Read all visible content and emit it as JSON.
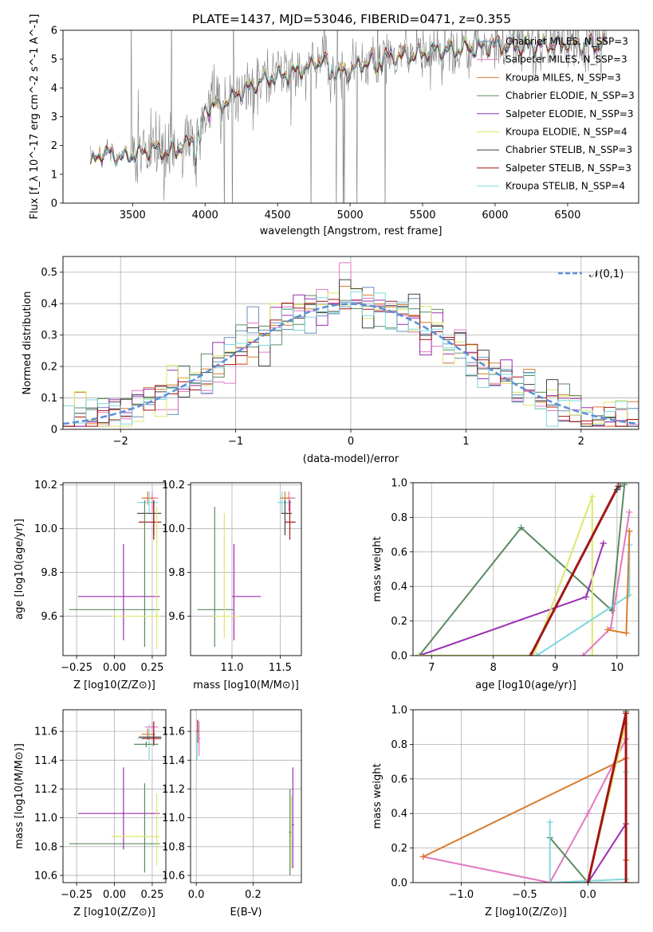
{
  "figure": {
    "title": "PLATE=1437, MJD=53046, FIBERID=0471, z=0.355"
  },
  "chart_data": [
    {
      "id": "spectrum",
      "type": "line",
      "xlabel": "wavelength [Angstrom, rest frame]",
      "ylabel": "Flux [f_λ 10^-17 erg cm^-2 s^-1 A^-1]",
      "xlim": [
        3020,
        6990
      ],
      "ylim": [
        0,
        6
      ],
      "xticks": [
        3500,
        4000,
        4500,
        5000,
        5500,
        6000,
        6500
      ],
      "yticks": [
        0,
        1,
        2,
        3,
        4,
        5,
        6
      ],
      "grid": false,
      "legend_position": "top-right",
      "data_anchor_x": [
        3210,
        3300,
        3350,
        3450,
        3550,
        3650,
        3750,
        3850,
        3950,
        4000,
        4050,
        4100,
        4150,
        4200,
        4300,
        4400,
        4500,
        4600,
        4700,
        4800,
        4860,
        4900,
        5000,
        5100,
        5200,
        5300,
        5400,
        5500,
        5600,
        5700,
        5800,
        5900,
        6000,
        6100,
        6200,
        6300,
        6400,
        6500,
        6600,
        6700,
        6770
      ],
      "model_anchor_y": [
        1.35,
        1.8,
        1.7,
        1.6,
        1.75,
        1.9,
        1.75,
        2.0,
        2.4,
        3.2,
        3.5,
        3.3,
        3.6,
        3.75,
        4.0,
        4.3,
        4.4,
        4.55,
        4.7,
        5.0,
        4.8,
        4.5,
        4.6,
        4.9,
        5.0,
        5.1,
        5.1,
        5.2,
        5.35,
        5.3,
        5.4,
        5.4,
        5.5,
        5.45,
        5.45,
        5.5,
        5.5,
        5.55,
        5.5,
        5.55,
        5.5
      ],
      "series": [
        {
          "name": "Chabrier MILES, N_SSP=3",
          "color": "#6a8fbf"
        },
        {
          "name": "Salpeter MILES, N_SSP=3",
          "color": "#e377c2"
        },
        {
          "name": "Kroupa MILES, N_SSP=3",
          "color": "#d97b2e"
        },
        {
          "name": "Chabrier ELODIE, N_SSP=3",
          "color": "#5b8a62"
        },
        {
          "name": "Salpeter ELODIE, N_SSP=3",
          "color": "#9a2fb3"
        },
        {
          "name": "Kroupa ELODIE, N_SSP=4",
          "color": "#dbe86a"
        },
        {
          "name": "Chabrier STELIB, N_SSP=3",
          "color": "#444444"
        },
        {
          "name": "Salpeter STELIB, N_SSP=3",
          "color": "#a31515"
        },
        {
          "name": "Kroupa STELIB, N_SSP=4",
          "color": "#7fd8de"
        }
      ],
      "data_color": "#7f7f7f"
    },
    {
      "id": "residuals",
      "type": "line",
      "xlabel": "(data-model)/error",
      "ylabel": "Normed distribution",
      "xlim": [
        -2.5,
        2.5
      ],
      "ylim": [
        0,
        0.55
      ],
      "xticks": [
        -2,
        -1,
        0,
        1,
        2
      ],
      "yticks": [
        0.0,
        0.1,
        0.2,
        0.3,
        0.4,
        0.5
      ],
      "grid": true,
      "legend_position": "top-right",
      "bin_width": 0.1,
      "series": [
        {
          "name": "𝒩(0,1)",
          "color": "#5b8fd9",
          "style": "dashed",
          "mu": 0,
          "sigma": 1
        }
      ],
      "histograms": [
        {
          "color": "#6a8fbf"
        },
        {
          "color": "#e377c2"
        },
        {
          "color": "#d97b2e"
        },
        {
          "color": "#5b8a62"
        },
        {
          "color": "#9a2fb3"
        },
        {
          "color": "#dbe86a"
        },
        {
          "color": "#444444"
        },
        {
          "color": "#a31515"
        },
        {
          "color": "#7fd8de"
        }
      ],
      "peaks": [
        {
          "x": -0.05,
          "y": 0.53
        },
        {
          "x": -0.85,
          "y": 0.39
        },
        {
          "x": 0.55,
          "y": 0.43
        }
      ]
    },
    {
      "id": "age_vs_Z",
      "type": "scatter",
      "xlabel": "Z [log10(Z/Z⊙)]",
      "ylabel": "age [log10(age/yr)]",
      "xlim": [
        -0.34,
        0.34
      ],
      "ylim": [
        9.42,
        10.21
      ],
      "xticks": [
        -0.25,
        0.0,
        0.25
      ],
      "xtick_labels": [
        "−0.25",
        "0.00",
        "0.25"
      ],
      "yticks": [
        9.6,
        9.8,
        10.0,
        10.2
      ],
      "yticks_labels": [
        "9.6",
        "9.8",
        "10.0",
        "10.2"
      ],
      "grid": true,
      "points": [
        {
          "x": 0.25,
          "y": 10.14,
          "xerr": [
            0.05,
            0.04
          ],
          "yerr": [
            0.06,
            0.03
          ],
          "color": "#e377c2"
        },
        {
          "x": 0.22,
          "y": 10.14,
          "xerr": [
            0.04,
            0.05
          ],
          "yerr": [
            0.03,
            0.03
          ],
          "color": "#d97b2e"
        },
        {
          "x": 0.23,
          "y": 10.12,
          "xerr": [
            0.08,
            0.06
          ],
          "yerr": [
            0.05,
            0.05
          ],
          "color": "#7fd8de"
        },
        {
          "x": 0.26,
          "y": 10.07,
          "xerr": [
            0.11,
            0.05
          ],
          "yerr": [
            0.1,
            0.06
          ],
          "color": "#444444"
        },
        {
          "x": 0.26,
          "y": 10.03,
          "xerr": [
            0.1,
            0.05
          ],
          "yerr": [
            0.08,
            0.1
          ],
          "color": "#a31515"
        },
        {
          "x": 0.06,
          "y": 9.69,
          "xerr": [
            0.3,
            0.24
          ],
          "yerr": [
            0.2,
            0.24
          ],
          "color": "#9a2fb3"
        },
        {
          "x": 0.2,
          "y": 9.63,
          "xerr": [
            0.5,
            0.1
          ],
          "yerr": [
            0.17,
            0.5
          ],
          "color": "#5b8a62"
        },
        {
          "x": 0.28,
          "y": 9.6,
          "xerr": [
            0.3,
            0.02
          ],
          "yerr": [
            0.15,
            0.5
          ],
          "color": "#dbe86a"
        }
      ]
    },
    {
      "id": "age_vs_mass",
      "type": "scatter",
      "xlabel": "mass [log10(M/M⊙)]",
      "xlim": [
        10.57,
        11.72
      ],
      "ylim": [
        9.42,
        10.21
      ],
      "xticks": [
        11.0,
        11.5
      ],
      "xtick_labels": [
        "11.0",
        "11.5"
      ],
      "yticks": [
        9.6,
        9.8,
        10.0,
        10.2
      ],
      "yticks_labels": [
        "9.6",
        "9.8",
        "10.0",
        "10.2"
      ],
      "grid": true,
      "points": [
        {
          "x": 11.59,
          "y": 10.14,
          "xerr": [
            0.07,
            0.07
          ],
          "yerr": [
            0.06,
            0.03
          ],
          "color": "#e377c2"
        },
        {
          "x": 11.55,
          "y": 10.14,
          "xerr": [
            0.05,
            0.07
          ],
          "yerr": [
            0.03,
            0.03
          ],
          "color": "#d97b2e"
        },
        {
          "x": 11.52,
          "y": 10.12,
          "xerr": [
            0.05,
            0.1
          ],
          "yerr": [
            0.05,
            0.05
          ],
          "color": "#7fd8de"
        },
        {
          "x": 11.55,
          "y": 10.07,
          "xerr": [
            0.04,
            0.07
          ],
          "yerr": [
            0.1,
            0.06
          ],
          "color": "#444444"
        },
        {
          "x": 11.6,
          "y": 10.03,
          "xerr": [
            0.05,
            0.06
          ],
          "yerr": [
            0.08,
            0.1
          ],
          "color": "#a31515"
        },
        {
          "x": 11.02,
          "y": 9.69,
          "xerr": [
            0.02,
            0.28
          ],
          "yerr": [
            0.2,
            0.24
          ],
          "color": "#9a2fb3"
        },
        {
          "x": 10.82,
          "y": 9.63,
          "xerr": [
            0.18,
            0.2
          ],
          "yerr": [
            0.17,
            0.47
          ],
          "color": "#5b8a62"
        },
        {
          "x": 10.92,
          "y": 9.6,
          "xerr": [
            0.12,
            0.16
          ],
          "yerr": [
            0.1,
            0.47
          ],
          "color": "#dbe86a"
        }
      ]
    },
    {
      "id": "weight_vs_age",
      "type": "line",
      "xlabel": "age [log10(age/yr)]",
      "ylabel": "mass weight",
      "xlim": [
        6.7,
        10.35
      ],
      "ylim": [
        0,
        1
      ],
      "xticks": [
        7,
        8,
        9,
        10
      ],
      "yticks": [
        0.0,
        0.2,
        0.4,
        0.6,
        0.8,
        1.0
      ],
      "yticks_labels": [
        "0.0",
        "0.2",
        "0.4",
        "0.6",
        "0.8",
        "1.0"
      ],
      "grid": true,
      "series": [
        {
          "color": "#5b8a62",
          "x": [
            6.8,
            8.45,
            9.92,
            10.12
          ],
          "y": [
            0.0,
            0.74,
            0.26,
            0.99
          ],
          "width": 2
        },
        {
          "color": "#9a2fb3",
          "x": [
            6.8,
            9.5,
            9.78
          ],
          "y": [
            0.0,
            0.34,
            0.65
          ],
          "width": 2
        },
        {
          "color": "#dbe86a",
          "x": [
            6.8,
            8.65,
            9.6,
            9.6
          ],
          "y": [
            0.0,
            0.0,
            0.92,
            0.0
          ],
          "width": 2
        },
        {
          "color": "#7fd8de",
          "x": [
            8.7,
            10.2,
            10.2
          ],
          "y": [
            0.0,
            0.35,
            0.64
          ],
          "width": 2
        },
        {
          "color": "#e377c2",
          "x": [
            9.45,
            9.9,
            10.2
          ],
          "y": [
            0.0,
            0.16,
            0.83
          ],
          "width": 2
        },
        {
          "color": "#d97b2e",
          "x": [
            9.85,
            10.15,
            10.2,
            10.2
          ],
          "y": [
            0.15,
            0.13,
            0.72,
            0.72
          ],
          "width": 2
        },
        {
          "color": "#a31515",
          "x": [
            8.6,
            10.02
          ],
          "y": [
            0.0,
            0.98
          ],
          "width": 3
        },
        {
          "color": "#444444",
          "x": [
            10.0,
            10.05
          ],
          "y": [
            0.96,
            0.98
          ],
          "width": 1
        }
      ]
    },
    {
      "id": "mass_vs_Z",
      "type": "scatter",
      "xlabel": "Z [log10(Z/Z⊙)]",
      "ylabel": "mass [log10(M/M⊙)]",
      "xlim": [
        -0.34,
        0.34
      ],
      "ylim": [
        10.55,
        11.75
      ],
      "xticks": [
        -0.25,
        0.0,
        0.25
      ],
      "xtick_labels": [
        "−0.25",
        "0.00",
        "0.25"
      ],
      "yticks": [
        10.6,
        10.8,
        11.0,
        11.2,
        11.4,
        11.6
      ],
      "yticks_labels": [
        "10.6",
        "10.8",
        "11.0",
        "11.2",
        "11.4",
        "11.6"
      ],
      "grid": true,
      "points": [
        {
          "x": 0.25,
          "y": 11.63,
          "xerr": [
            0.05,
            0.04
          ],
          "yerr": [
            0.03,
            0.03
          ],
          "color": "#e377c2"
        },
        {
          "x": 0.22,
          "y": 11.58,
          "xerr": [
            0.04,
            0.05
          ],
          "yerr": [
            0.04,
            0.04
          ],
          "color": "#d97b2e"
        },
        {
          "x": 0.23,
          "y": 11.55,
          "xerr": [
            0.08,
            0.06
          ],
          "yerr": [
            0.15,
            0.1
          ],
          "color": "#7fd8de"
        },
        {
          "x": 0.26,
          "y": 11.56,
          "xerr": [
            0.1,
            0.05
          ],
          "yerr": [
            0.05,
            0.04
          ],
          "color": "#444444"
        },
        {
          "x": 0.26,
          "y": 11.55,
          "xerr": [
            0.08,
            0.05
          ],
          "yerr": [
            0.05,
            0.12
          ],
          "color": "#a31515"
        },
        {
          "x": 0.21,
          "y": 11.51,
          "xerr": [
            0.08,
            0.08
          ],
          "yerr": [
            0.02,
            0.02
          ],
          "color": "#5b8a62"
        },
        {
          "x": 0.06,
          "y": 11.03,
          "xerr": [
            0.3,
            0.24
          ],
          "yerr": [
            0.25,
            0.32
          ],
          "color": "#9a2fb3"
        },
        {
          "x": 0.2,
          "y": 10.82,
          "xerr": [
            0.5,
            0.1
          ],
          "yerr": [
            0.2,
            0.42
          ],
          "color": "#5b8a62"
        },
        {
          "x": 0.28,
          "y": 10.87,
          "xerr": [
            0.3,
            0.02
          ],
          "yerr": [
            0.2,
            0.3
          ],
          "color": "#dbe86a"
        }
      ]
    },
    {
      "id": "mass_vs_ebv",
      "type": "scatter",
      "xlabel": "E(B-V)",
      "xlim": [
        -0.02,
        0.37
      ],
      "ylim": [
        10.55,
        11.75
      ],
      "xticks": [
        0.0,
        0.2
      ],
      "xtick_labels": [
        "0.0",
        "0.2"
      ],
      "yticks": [
        10.6,
        10.8,
        11.0,
        11.2,
        11.4,
        11.6
      ],
      "yticks_labels": [
        "10.6",
        "10.8",
        "11.0",
        "11.2",
        "11.4",
        "11.6"
      ],
      "grid": true,
      "points": [
        {
          "x": 0.005,
          "y": 11.6,
          "xerr": [
            0.005,
            0.005
          ],
          "yerr": [
            0.08,
            0.08
          ],
          "color": "#a31515"
        },
        {
          "x": 0.01,
          "y": 11.55,
          "xerr": [
            0.005,
            0.005
          ],
          "yerr": [
            0.12,
            0.12
          ],
          "color": "#e377c2"
        },
        {
          "x": 0.003,
          "y": 11.5,
          "xerr": [
            0.003,
            0.003
          ],
          "yerr": [
            0.1,
            0.1
          ],
          "color": "#7fd8de"
        },
        {
          "x": 0.34,
          "y": 10.95,
          "xerr": [
            0.004,
            0.004
          ],
          "yerr": [
            0.3,
            0.4
          ],
          "color": "#9a2fb3"
        },
        {
          "x": 0.33,
          "y": 10.9,
          "xerr": [
            0.004,
            0.004
          ],
          "yerr": [
            0.3,
            0.3
          ],
          "color": "#5b8a62"
        },
        {
          "x": 0.335,
          "y": 10.85,
          "xerr": [
            0.004,
            0.004
          ],
          "yerr": [
            0.2,
            0.3
          ],
          "color": "#dbe86a"
        }
      ]
    },
    {
      "id": "weight_vs_Z",
      "type": "line",
      "xlabel": "Z [log10(Z/Z⊙)]",
      "ylabel": "mass weight",
      "xlim": [
        -1.38,
        0.4
      ],
      "ylim": [
        0,
        1
      ],
      "xticks": [
        -1.0,
        -0.5,
        0.0
      ],
      "xtick_labels": [
        "−1.0",
        "−0.5",
        "0.0"
      ],
      "yticks": [
        0.0,
        0.2,
        0.4,
        0.6,
        0.8,
        1.0
      ],
      "yticks_labels": [
        "0.0",
        "0.2",
        "0.4",
        "0.6",
        "0.8",
        "1.0"
      ],
      "grid": true,
      "series": [
        {
          "color": "#e377c2",
          "x": [
            -1.3,
            -0.3,
            0.0,
            0.3,
            0.3
          ],
          "y": [
            0.15,
            0.0,
            0.4,
            0.83,
            0.83
          ],
          "width": 2
        },
        {
          "color": "#d97b2e",
          "x": [
            -1.3,
            0.3,
            0.3
          ],
          "y": [
            0.15,
            0.72,
            0.13
          ],
          "width": 2
        },
        {
          "color": "#5b8a62",
          "x": [
            -0.3,
            0.0,
            0.3
          ],
          "y": [
            0.26,
            0.0,
            0.99
          ],
          "width": 2
        },
        {
          "color": "#7fd8de",
          "x": [
            -0.3,
            -0.3,
            0.3,
            0.3
          ],
          "y": [
            0.35,
            0.0,
            0.02,
            0.64
          ],
          "width": 2
        },
        {
          "color": "#9a2fb3",
          "x": [
            0.0,
            0.3
          ],
          "y": [
            0.0,
            0.34
          ],
          "width": 2
        },
        {
          "color": "#dbe86a",
          "x": [
            0.0,
            0.3,
            0.3
          ],
          "y": [
            0.0,
            0.92,
            0.0
          ],
          "width": 2
        },
        {
          "color": "#a31515",
          "x": [
            0.0,
            0.3,
            0.3
          ],
          "y": [
            0.0,
            0.98,
            0.0
          ],
          "width": 3
        }
      ]
    }
  ]
}
